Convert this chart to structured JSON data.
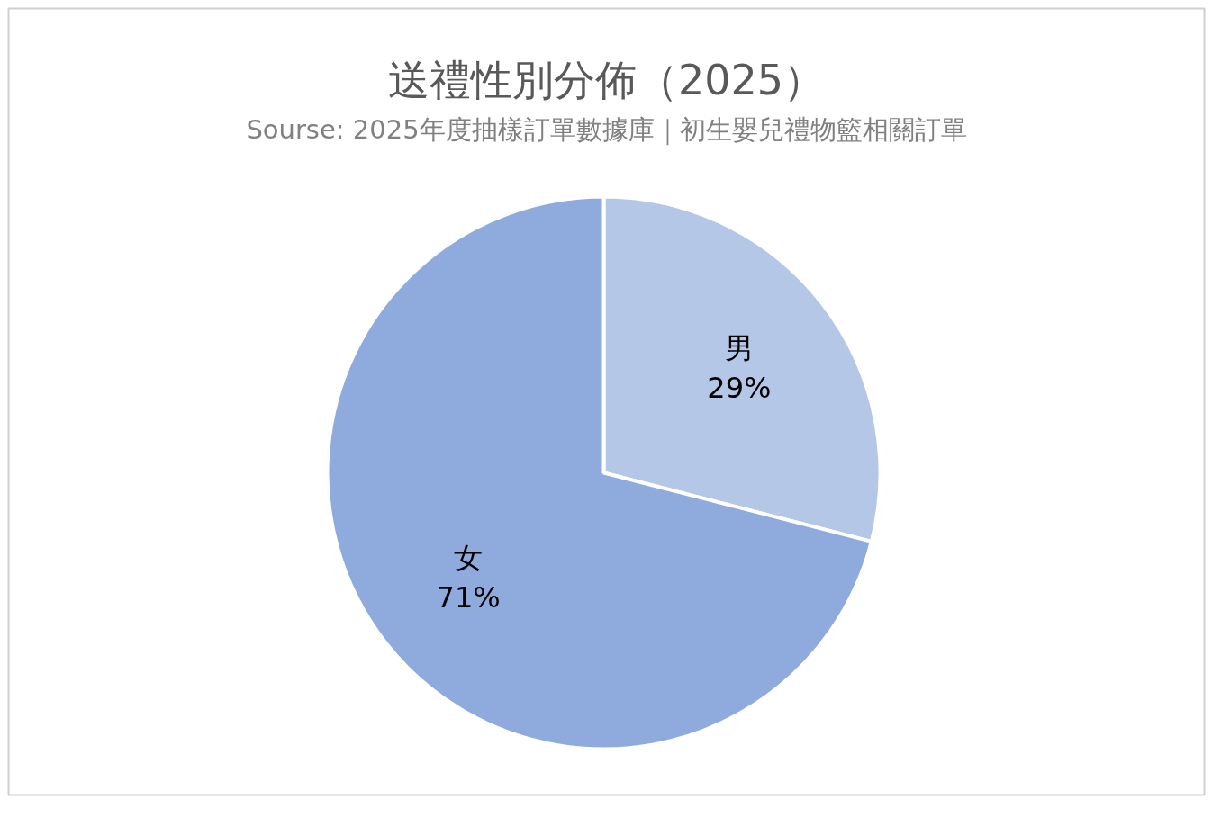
{
  "chart_data": {
    "type": "pie",
    "title": "送禮性別分佈（2025）",
    "subtitle": "Sourse: 2025年度抽樣訂單數據庫｜初生嬰兒禮物籃相關訂單",
    "categories": [
      "男",
      "女"
    ],
    "values": [
      29,
      71
    ],
    "colors": [
      "#b4c7e7",
      "#8faadc"
    ],
    "value_labels": [
      "29%",
      "71%"
    ]
  }
}
